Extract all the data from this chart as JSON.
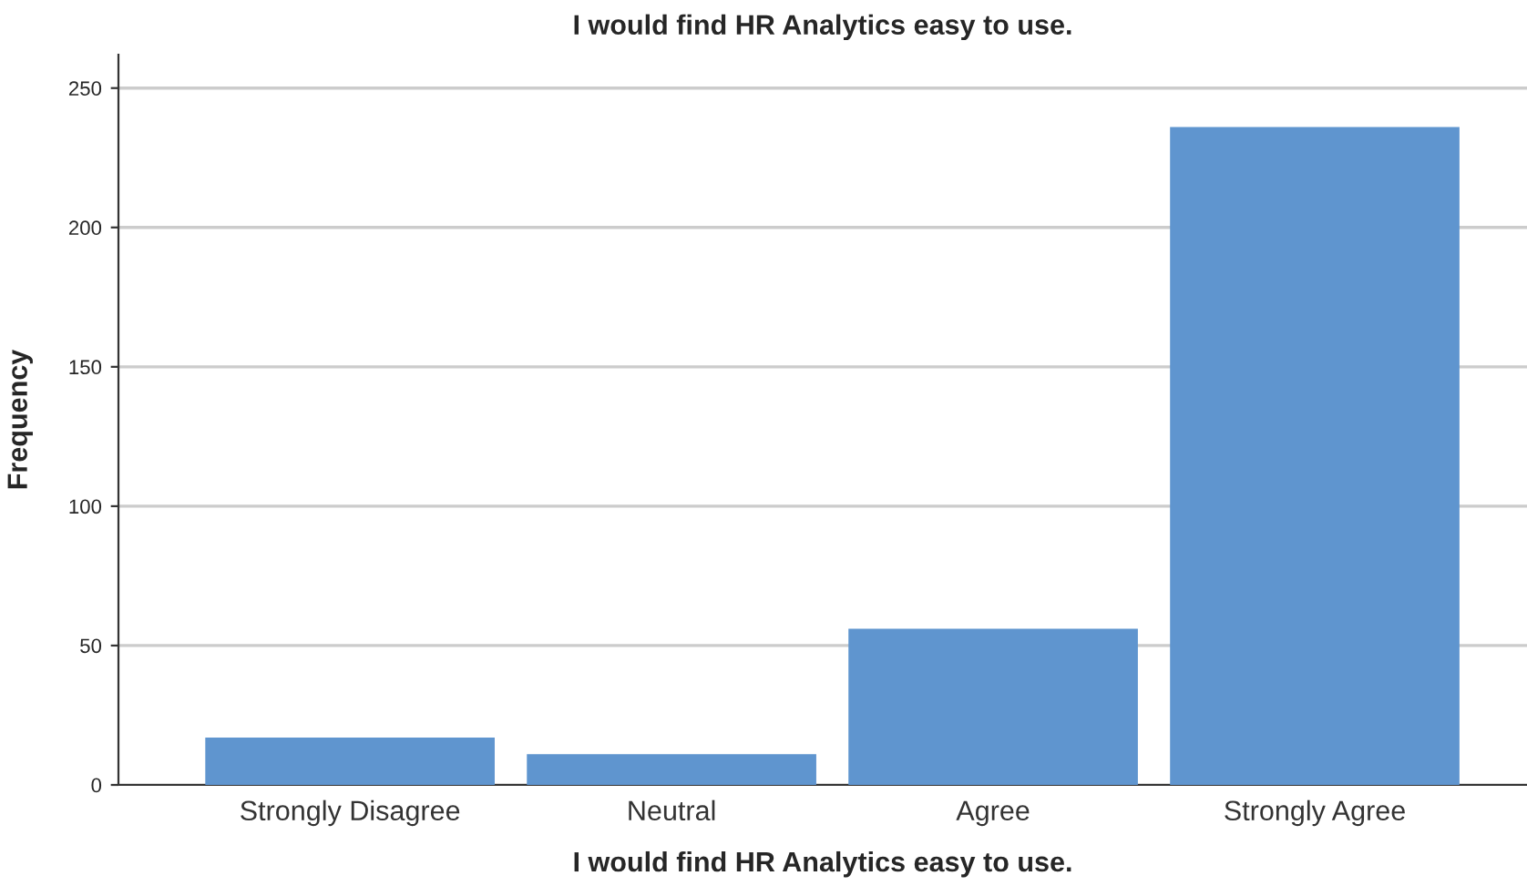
{
  "chart_data": {
    "type": "bar",
    "title": "I would find HR Analytics easy to use.",
    "xlabel": "I would find HR Analytics easy to use.",
    "ylabel": "Frequency",
    "categories": [
      "Strongly Disagree",
      "Neutral",
      "Agree",
      "Strongly Agree"
    ],
    "values": [
      17,
      11,
      56,
      236
    ],
    "color": "#5f95cf",
    "ylim": [
      0,
      262
    ],
    "yticks": [
      0,
      50,
      100,
      150,
      200,
      250
    ],
    "grid": "y",
    "legend": false
  }
}
